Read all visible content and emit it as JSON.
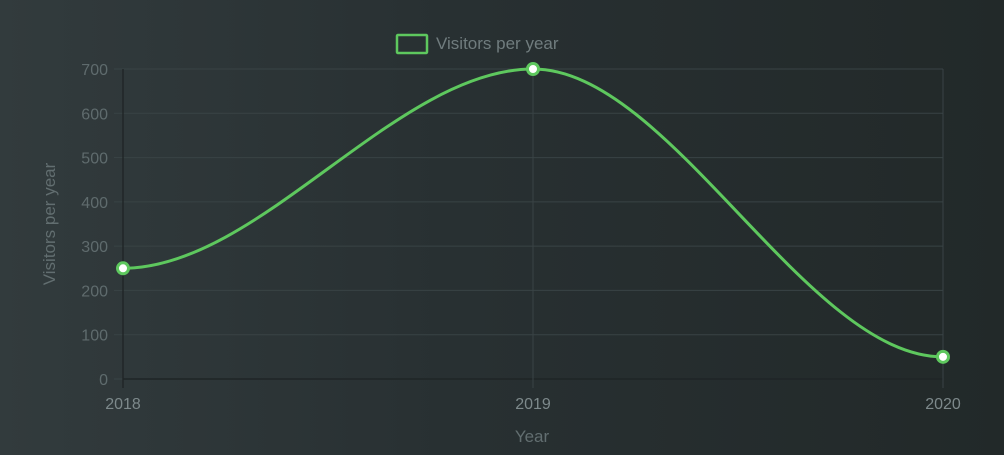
{
  "chart_data": {
    "type": "line",
    "title": "",
    "xlabel": "Year",
    "ylabel": "Visitors per year",
    "categories": [
      "2018",
      "2019",
      "2020"
    ],
    "series": [
      {
        "name": "Visitors per year",
        "values": [
          250,
          700,
          50
        ]
      }
    ],
    "ylim": [
      0,
      700
    ],
    "yticks": [
      0,
      100,
      200,
      300,
      400,
      500,
      600,
      700
    ],
    "grid": true,
    "legend": "top-center",
    "colors": {
      "line": "#5ec85e",
      "point_fill": "#ffffff",
      "point_stroke": "#5ec85e"
    }
  }
}
